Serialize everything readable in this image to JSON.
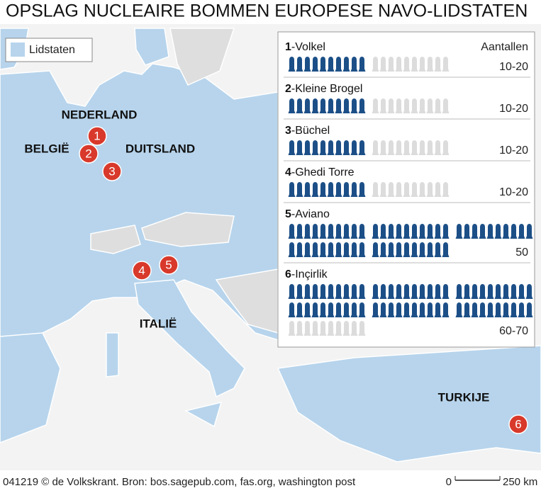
{
  "header": {
    "title": "OPSLAG NUCLEAIRE BOMMEN EUROPESE NAVO-LIDSTATEN"
  },
  "legend": {
    "label": "Lidstaten"
  },
  "countries": [
    "NEDERLAND",
    "BELGIË",
    "DUITSLAND",
    "ITALIË",
    "TURKIJE"
  ],
  "markers": [
    "1",
    "2",
    "3",
    "4",
    "5",
    "6"
  ],
  "panel": {
    "column_header": "Aantallen",
    "bases": [
      {
        "number": "1",
        "name": "-Volkel",
        "range": "10-20",
        "min_bombs": 10,
        "extra_bombs": 10
      },
      {
        "number": "2",
        "name": "-Kleine Brogel",
        "range": "10-20",
        "min_bombs": 10,
        "extra_bombs": 10
      },
      {
        "number": "3",
        "name": "-Büchel",
        "range": "10-20",
        "min_bombs": 10,
        "extra_bombs": 10
      },
      {
        "number": "4",
        "name": "-Ghedi Torre",
        "range": "10-20",
        "min_bombs": 10,
        "extra_bombs": 10
      },
      {
        "number": "5",
        "name": "-Aviano",
        "range": "50",
        "min_bombs": 50,
        "extra_bombs": 0
      },
      {
        "number": "6",
        "name": "-Inçirlik",
        "range": "60-70",
        "min_bombs": 60,
        "extra_bombs": 10
      }
    ]
  },
  "scale": {
    "start": "0",
    "end": "250 km"
  },
  "footer": {
    "source": "041219 © de Volkskrant. Bron: bos.sagepub.com, fas.org, washington post"
  }
}
